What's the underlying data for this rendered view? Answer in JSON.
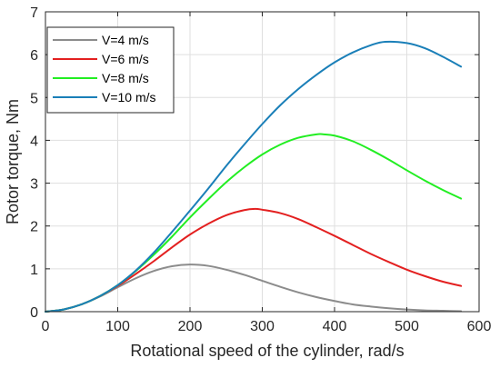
{
  "chart_data": {
    "type": "line",
    "xlabel": "Rotational speed of the cylinder, rad/s",
    "ylabel": "Rotor torque, Nm",
    "xlim": [
      0,
      600
    ],
    "ylim": [
      0,
      7
    ],
    "xticks": [
      0,
      100,
      200,
      300,
      400,
      500,
      600
    ],
    "yticks": [
      0,
      1,
      2,
      3,
      4,
      5,
      6,
      7
    ],
    "grid": true,
    "legend_position": "top-left",
    "series": [
      {
        "name": "V=4 m/s",
        "color": "#8c8c8c",
        "x": [
          0,
          25,
          50,
          75,
          100,
          125,
          150,
          175,
          200,
          225,
          250,
          275,
          300,
          325,
          350,
          375,
          400,
          425,
          450,
          475,
          500,
          525,
          550,
          575
        ],
        "y": [
          0,
          0.05,
          0.17,
          0.35,
          0.57,
          0.78,
          0.95,
          1.06,
          1.1,
          1.07,
          0.98,
          0.86,
          0.72,
          0.58,
          0.45,
          0.34,
          0.25,
          0.17,
          0.12,
          0.08,
          0.05,
          0.03,
          0.02,
          0.01
        ]
      },
      {
        "name": "V=6 m/s",
        "color": "#e32020",
        "x": [
          0,
          25,
          50,
          75,
          100,
          125,
          150,
          175,
          200,
          225,
          250,
          275,
          290,
          300,
          325,
          350,
          375,
          400,
          425,
          450,
          475,
          500,
          525,
          550,
          575
        ],
        "y": [
          0,
          0.05,
          0.17,
          0.36,
          0.6,
          0.88,
          1.18,
          1.5,
          1.8,
          2.05,
          2.25,
          2.37,
          2.4,
          2.38,
          2.3,
          2.16,
          1.97,
          1.77,
          1.56,
          1.35,
          1.16,
          0.98,
          0.83,
          0.7,
          0.6
        ]
      },
      {
        "name": "V=8 m/s",
        "color": "#22ee22",
        "x": [
          0,
          25,
          50,
          75,
          100,
          125,
          150,
          175,
          200,
          225,
          250,
          275,
          300,
          325,
          350,
          375,
          385,
          400,
          425,
          450,
          475,
          500,
          525,
          550,
          575
        ],
        "y": [
          0,
          0.05,
          0.17,
          0.36,
          0.62,
          0.95,
          1.33,
          1.75,
          2.2,
          2.62,
          3.02,
          3.37,
          3.67,
          3.9,
          4.06,
          4.14,
          4.14,
          4.11,
          3.98,
          3.78,
          3.55,
          3.3,
          3.06,
          2.84,
          2.64
        ]
      },
      {
        "name": "V=10 m/s",
        "color": "#1a7fb8",
        "x": [
          0,
          25,
          50,
          75,
          100,
          125,
          150,
          175,
          200,
          225,
          250,
          275,
          300,
          325,
          350,
          375,
          400,
          425,
          450,
          470,
          500,
          525,
          550,
          575
        ],
        "y": [
          0,
          0.05,
          0.17,
          0.36,
          0.62,
          0.96,
          1.38,
          1.86,
          2.36,
          2.87,
          3.4,
          3.9,
          4.38,
          4.82,
          5.2,
          5.53,
          5.82,
          6.05,
          6.22,
          6.3,
          6.27,
          6.15,
          5.95,
          5.72
        ]
      }
    ]
  }
}
